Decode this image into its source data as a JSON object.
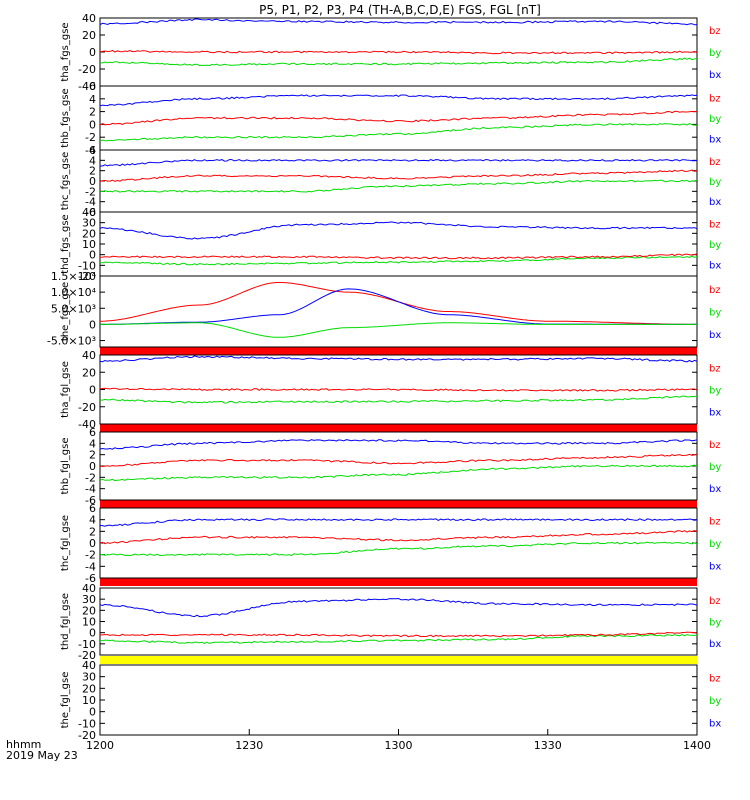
{
  "title": "P5, P1, P2, P3, P4 (TH-A,B,C,D,E) FGS, FGL [nT]",
  "colors": {
    "bx": "#0000ff",
    "by": "#00dd00",
    "bz": "#ff0000",
    "bar_red": "#ff0000",
    "bar_yellow": "#ffff00"
  },
  "footer": {
    "label": "hhmm",
    "date": "2019 May 23"
  },
  "x_axis": {
    "ticks": [
      "1200",
      "1230",
      "1300",
      "1330",
      "1400"
    ]
  },
  "chart_data": {
    "type": "line",
    "x_range_hhmm": [
      "12:00",
      "14:00"
    ],
    "panels": [
      {
        "ylabel": "tha_fgs_gse",
        "ylim": [
          -40,
          40
        ],
        "yticks": [
          "40",
          "20",
          "0",
          "-20",
          "-40"
        ],
        "legend": [
          "bz",
          "by",
          "bx"
        ],
        "series": [
          {
            "name": "bx",
            "x": [
              "12:00",
              "12:20",
              "12:40",
              "13:00",
              "13:20",
              "13:40",
              "14:00"
            ],
            "values": [
              33,
              38,
              36,
              35,
              35,
              36,
              33
            ]
          },
          {
            "name": "by",
            "x": [
              "12:00",
              "12:20",
              "12:40",
              "13:00",
              "13:20",
              "13:40",
              "14:00"
            ],
            "values": [
              -12,
              -15,
              -14,
              -14,
              -13,
              -12,
              -8
            ]
          },
          {
            "name": "bz",
            "x": [
              "12:00",
              "12:20",
              "12:40",
              "13:00",
              "13:20",
              "13:40",
              "14:00"
            ],
            "values": [
              1,
              0,
              0,
              0,
              -1,
              -1,
              0
            ]
          }
        ]
      },
      {
        "ylabel": "thb_fgs_gse",
        "ylim": [
          -4,
          6
        ],
        "yticks": [
          "6",
          "4",
          "2",
          "0",
          "-2",
          "-4"
        ],
        "legend": [
          "bz",
          "by",
          "bx"
        ],
        "series": [
          {
            "name": "bx",
            "x": [
              "12:00",
              "12:20",
              "12:40",
              "13:00",
              "13:20",
              "13:40",
              "14:00"
            ],
            "values": [
              3,
              4,
              4.5,
              4.5,
              4,
              4,
              4.5
            ]
          },
          {
            "name": "by",
            "x": [
              "12:00",
              "12:20",
              "12:40",
              "13:00",
              "13:20",
              "13:40",
              "14:00"
            ],
            "values": [
              -2.5,
              -2,
              -2,
              -1.5,
              -0.5,
              0,
              0
            ]
          },
          {
            "name": "bz",
            "x": [
              "12:00",
              "12:20",
              "12:40",
              "13:00",
              "13:20",
              "13:40",
              "14:00"
            ],
            "values": [
              0,
              1,
              1,
              0.5,
              1,
              1.5,
              2
            ]
          }
        ]
      },
      {
        "ylabel": "thc_fgs_gse",
        "ylim": [
          -6,
          6
        ],
        "yticks": [
          "6",
          "4",
          "2",
          "0",
          "-2",
          "-4",
          "-6"
        ],
        "legend": [
          "bz",
          "by",
          "bx"
        ],
        "series": [
          {
            "name": "bx",
            "x": [
              "12:00",
              "12:20",
              "12:40",
              "13:00",
              "13:20",
              "13:40",
              "14:00"
            ],
            "values": [
              3,
              4,
              4,
              4,
              4,
              4,
              4
            ]
          },
          {
            "name": "by",
            "x": [
              "12:00",
              "12:20",
              "12:40",
              "13:00",
              "13:20",
              "13:40",
              "14:00"
            ],
            "values": [
              -2,
              -2,
              -2,
              -1,
              -0.5,
              0,
              0
            ]
          },
          {
            "name": "bz",
            "x": [
              "12:00",
              "12:20",
              "12:40",
              "13:00",
              "13:20",
              "13:40",
              "14:00"
            ],
            "values": [
              0,
              1,
              1,
              0.5,
              1,
              1.5,
              2
            ]
          }
        ]
      },
      {
        "ylabel": "thd_fgs_gse",
        "ylim": [
          -20,
          40
        ],
        "yticks": [
          "40",
          "30",
          "20",
          "10",
          "0",
          "-10",
          "-20"
        ],
        "legend": [
          "bz",
          "by",
          "bx"
        ],
        "series": [
          {
            "name": "bx",
            "x": [
              "12:00",
              "12:20",
              "12:40",
              "13:00",
              "13:20",
              "13:40",
              "14:00"
            ],
            "values": [
              25,
              15,
              28,
              30,
              26,
              25,
              25
            ]
          },
          {
            "name": "by",
            "x": [
              "12:00",
              "12:20",
              "12:40",
              "13:00",
              "13:20",
              "13:40",
              "14:00"
            ],
            "values": [
              -7,
              -9,
              -8,
              -7,
              -6,
              -3,
              -2
            ]
          },
          {
            "name": "bz",
            "x": [
              "12:00",
              "12:20",
              "12:40",
              "13:00",
              "13:20",
              "13:40",
              "14:00"
            ],
            "values": [
              -2,
              -2,
              -2,
              -3,
              -3,
              -2,
              0
            ]
          }
        ]
      },
      {
        "ylabel": "the_fgs_gse",
        "ylim": [
          -7000,
          15000
        ],
        "yticks": [
          "1.5×10⁴",
          "1.0×10⁴",
          "5.0×10³",
          "0",
          "-5.0×10³"
        ],
        "legend": [
          "bz",
          "by",
          "bx"
        ],
        "series": [
          {
            "name": "bz",
            "x": [
              "12:00",
              "12:20",
              "12:36",
              "12:50",
              "13:10",
              "13:30",
              "14:00"
            ],
            "values": [
              1000,
              6000,
              13000,
              10000,
              4000,
              1000,
              0
            ]
          },
          {
            "name": "bx",
            "x": [
              "12:00",
              "12:20",
              "12:36",
              "12:50",
              "13:10",
              "13:30",
              "14:00"
            ],
            "values": [
              0,
              700,
              3000,
              11000,
              3000,
              100,
              0
            ]
          },
          {
            "name": "by",
            "x": [
              "12:00",
              "12:20",
              "12:36",
              "12:50",
              "13:10",
              "13:30",
              "14:00"
            ],
            "values": [
              0,
              500,
              -4000,
              -1000,
              500,
              0,
              0
            ]
          }
        ]
      },
      {
        "ylabel": "tha_fgl_gse",
        "ylim": [
          -40,
          40
        ],
        "yticks": [
          "40",
          "20",
          "0",
          "-20",
          "-40"
        ],
        "legend": [
          "bz",
          "by",
          "bx"
        ],
        "series": [
          {
            "name": "bx",
            "x": [
              "12:00",
              "12:20",
              "12:40",
              "13:00",
              "13:20",
              "13:40",
              "14:00"
            ],
            "values": [
              33,
              38,
              36,
              35,
              35,
              36,
              33
            ]
          },
          {
            "name": "by",
            "x": [
              "12:00",
              "12:20",
              "12:40",
              "13:00",
              "13:20",
              "13:40",
              "14:00"
            ],
            "values": [
              -12,
              -15,
              -14,
              -14,
              -13,
              -12,
              -8
            ]
          },
          {
            "name": "bz",
            "x": [
              "12:00",
              "12:20",
              "12:40",
              "13:00",
              "13:20",
              "13:40",
              "14:00"
            ],
            "values": [
              1,
              0,
              0,
              0,
              -1,
              -1,
              0
            ]
          }
        ]
      },
      {
        "ylabel": "thb_fgl_gse",
        "ylim": [
          -6,
          6
        ],
        "yticks": [
          "6",
          "4",
          "2",
          "0",
          "-2",
          "-4",
          "-6"
        ],
        "legend": [
          "bz",
          "by",
          "bx"
        ],
        "series": [
          {
            "name": "bx",
            "x": [
              "12:00",
              "12:20",
              "12:40",
              "13:00",
              "13:20",
              "13:40",
              "14:00"
            ],
            "values": [
              3,
              4,
              4.5,
              4.5,
              4,
              4,
              4.5
            ]
          },
          {
            "name": "by",
            "x": [
              "12:00",
              "12:20",
              "12:40",
              "13:00",
              "13:20",
              "13:40",
              "14:00"
            ],
            "values": [
              -2.5,
              -2,
              -2,
              -1.5,
              -0.5,
              0,
              0
            ]
          },
          {
            "name": "bz",
            "x": [
              "12:00",
              "12:20",
              "12:40",
              "13:00",
              "13:20",
              "13:40",
              "14:00"
            ],
            "values": [
              0,
              1,
              1,
              0.5,
              1,
              1.5,
              2
            ]
          }
        ]
      },
      {
        "ylabel": "thc_fgl_gse",
        "ylim": [
          -6,
          6
        ],
        "yticks": [
          "6",
          "4",
          "2",
          "0",
          "-2",
          "-4",
          "-6"
        ],
        "legend": [
          "bz",
          "by",
          "bx"
        ],
        "series": [
          {
            "name": "bx",
            "x": [
              "12:00",
              "12:20",
              "12:40",
              "13:00",
              "13:20",
              "13:40",
              "14:00"
            ],
            "values": [
              3,
              4,
              4,
              4,
              4,
              4,
              4
            ]
          },
          {
            "name": "by",
            "x": [
              "12:00",
              "12:20",
              "12:40",
              "13:00",
              "13:20",
              "13:40",
              "14:00"
            ],
            "values": [
              -2,
              -2,
              -2,
              -1,
              -0.5,
              0,
              0
            ]
          },
          {
            "name": "bz",
            "x": [
              "12:00",
              "12:20",
              "12:40",
              "13:00",
              "13:20",
              "13:40",
              "14:00"
            ],
            "values": [
              0,
              1,
              1,
              0.5,
              1,
              1.5,
              2
            ]
          }
        ]
      },
      {
        "ylabel": "thd_fgl_gse",
        "ylim": [
          -20,
          40
        ],
        "yticks": [
          "40",
          "30",
          "20",
          "10",
          "0",
          "-10",
          "-20"
        ],
        "legend": [
          "bz",
          "by",
          "bx"
        ],
        "series": [
          {
            "name": "bx",
            "x": [
              "12:00",
              "12:20",
              "12:40",
              "13:00",
              "13:20",
              "13:40",
              "14:00"
            ],
            "values": [
              25,
              15,
              28,
              30,
              26,
              25,
              25
            ]
          },
          {
            "name": "by",
            "x": [
              "12:00",
              "12:20",
              "12:40",
              "13:00",
              "13:20",
              "13:40",
              "14:00"
            ],
            "values": [
              -7,
              -9,
              -8,
              -7,
              -6,
              -3,
              -2
            ]
          },
          {
            "name": "bz",
            "x": [
              "12:00",
              "12:20",
              "12:40",
              "13:00",
              "13:20",
              "13:40",
              "14:00"
            ],
            "values": [
              -2,
              -2,
              -2,
              -3,
              -3,
              -2,
              0
            ]
          }
        ]
      },
      {
        "ylabel": "the_fgl_gse",
        "ylim": [
          -20,
          40
        ],
        "yticks": [
          "40",
          "30",
          "20",
          "10",
          "0",
          "-10",
          "-20"
        ],
        "legend": [
          "bz",
          "by",
          "bx"
        ],
        "series": []
      }
    ]
  }
}
